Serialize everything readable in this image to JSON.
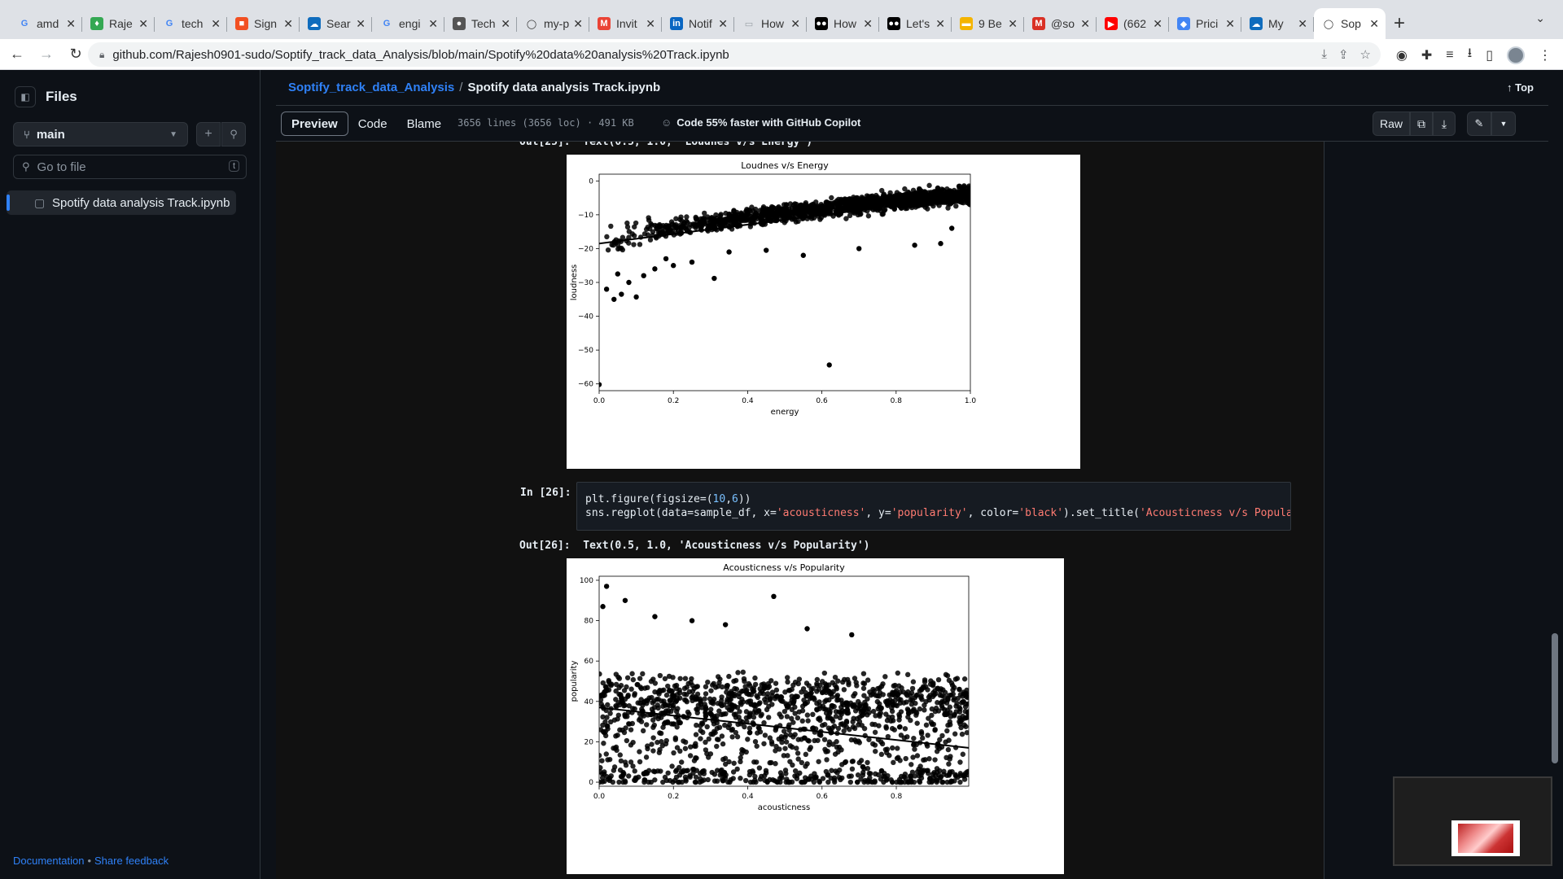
{
  "browser": {
    "tabs": [
      {
        "label": "amd",
        "favicon": "google-icon",
        "color": "#4285f4"
      },
      {
        "label": "Raje",
        "favicon": "leaf-icon",
        "color": "#34a853"
      },
      {
        "label": "tech",
        "favicon": "google-icon",
        "color": "#4285f4"
      },
      {
        "label": "Sign",
        "favicon": "microsoft-icon",
        "color": "#f25022"
      },
      {
        "label": "Sear",
        "favicon": "cloud-icon",
        "color": "#0f6cbd"
      },
      {
        "label": "engi",
        "favicon": "google-icon",
        "color": "#4285f4"
      },
      {
        "label": "Tech",
        "favicon": "person-icon",
        "color": "#555555"
      },
      {
        "label": "my-p",
        "favicon": "github-icon",
        "color": "#333333"
      },
      {
        "label": "Invit",
        "favicon": "gmail-icon",
        "color": "#ea4335"
      },
      {
        "label": "Notif",
        "favicon": "linkedin-icon",
        "color": "#0a66c2"
      },
      {
        "label": "How",
        "favicon": "doc-icon",
        "color": "#9aa0a6"
      },
      {
        "label": "How",
        "favicon": "medium-icon",
        "color": "#000000"
      },
      {
        "label": "Let's",
        "favicon": "medium-icon",
        "color": "#000000"
      },
      {
        "label": "9 Be",
        "favicon": "note-icon",
        "color": "#f4b400"
      },
      {
        "label": "@so",
        "favicon": "m-icon",
        "color": "#d93025"
      },
      {
        "label": "(662",
        "favicon": "youtube-icon",
        "color": "#ff0000"
      },
      {
        "label": "Prici",
        "favicon": "gcloud-icon",
        "color": "#4285f4"
      },
      {
        "label": "My",
        "favicon": "cloud-icon",
        "color": "#0f6cbd"
      },
      {
        "label": "Sop",
        "favicon": "github-icon",
        "color": "#ffffff",
        "active": true
      }
    ],
    "url": "github.com/Rajesh0901-sudo/Soptify_track_data_Analysis/blob/main/Spotify%20data%20analysis%20Track.ipynb"
  },
  "sidebar": {
    "title": "Files",
    "branch": "main",
    "search_placeholder": "Go to file",
    "search_shortcut": "t",
    "files": [
      "Spotify data analysis Track.ipynb"
    ],
    "footer_docs": "Documentation",
    "footer_sep": "•",
    "footer_feedback": "Share feedback"
  },
  "file": {
    "repo": "Soptify_track_data_Analysis",
    "sep": "/",
    "name": "Spotify data analysis Track.ipynb",
    "top_label": "Top",
    "tabs": [
      "Preview",
      "Code",
      "Blame"
    ],
    "info": "3656 lines (3656 loc) · 491 KB",
    "copilot": "Code 55% faster with GitHub Copilot",
    "raw": "Raw"
  },
  "notebook": {
    "out25_prompt": "Out[25]:",
    "out25_text": "Text(0.5, 1.0, 'Loudnes v/s Energy')",
    "in26_prompt": "In [26]:",
    "code_line1": "plt.figure(figsize=(10,6))",
    "code_line2": "sns.regplot(data=sample_df, x='acousticness', y='popularity', color='black').set_title('Acousticness v/s Popula",
    "out26_prompt": "Out[26]:",
    "out26_text": "Text(0.5, 1.0, 'Acousticness v/s Popularity')"
  },
  "chart_data": [
    {
      "type": "scatter",
      "title": "Loudnes v/s Energy",
      "xlabel": "energy",
      "ylabel": "loudness",
      "xlim": [
        0.0,
        1.0
      ],
      "ylim": [
        -62,
        2
      ],
      "xticks": [
        "0.0",
        "0.2",
        "0.4",
        "0.6",
        "0.8",
        "1.0"
      ],
      "yticks": [
        "0",
        "−10",
        "−20",
        "−30",
        "−40",
        "−50",
        "−60"
      ],
      "color": "#000000",
      "regression": {
        "x": [
          0.0,
          1.0
        ],
        "y": [
          -18.5,
          -4.5
        ]
      },
      "points": [
        [
          0.0,
          -60.2
        ],
        [
          0.62,
          -54.4
        ],
        [
          0.31,
          -28.8
        ],
        [
          0.04,
          -35.0
        ],
        [
          0.1,
          -34.3
        ],
        [
          0.06,
          -33.5
        ],
        [
          0.02,
          -32.0
        ],
        [
          0.08,
          -30.0
        ],
        [
          0.12,
          -28.0
        ],
        [
          0.05,
          -27.5
        ],
        [
          0.15,
          -26.0
        ],
        [
          0.2,
          -25.0
        ],
        [
          0.25,
          -24.0
        ],
        [
          0.18,
          -23.0
        ],
        [
          0.55,
          -22.0
        ],
        [
          0.35,
          -21.0
        ],
        [
          0.45,
          -20.5
        ],
        [
          0.7,
          -20.0
        ],
        [
          0.85,
          -19.0
        ],
        [
          0.92,
          -18.5
        ],
        [
          0.95,
          -14.0
        ]
      ]
    },
    {
      "type": "scatter",
      "title": "Acousticness v/s Popularity",
      "xlabel": "acousticness",
      "ylabel": "popularity",
      "xlim": [
        0.0,
        0.995
      ],
      "ylim": [
        -2,
        102
      ],
      "xticks": [
        "0.0",
        "0.2",
        "0.4",
        "0.6",
        "0.8"
      ],
      "yticks": [
        "0",
        "20",
        "40",
        "60",
        "80",
        "100"
      ],
      "color": "#000000",
      "regression": {
        "x": [
          0.0,
          0.995
        ],
        "y": [
          37,
          17
        ]
      },
      "points": [
        [
          0.02,
          97
        ],
        [
          0.47,
          92
        ],
        [
          0.01,
          87
        ],
        [
          0.07,
          90
        ],
        [
          0.56,
          76
        ],
        [
          0.25,
          80
        ],
        [
          0.15,
          82
        ],
        [
          0.34,
          78
        ],
        [
          0.68,
          73
        ]
      ]
    }
  ],
  "colors": {
    "accent": "#2f81f7",
    "background": "#0d1117",
    "notebook_bg": "#111111"
  }
}
